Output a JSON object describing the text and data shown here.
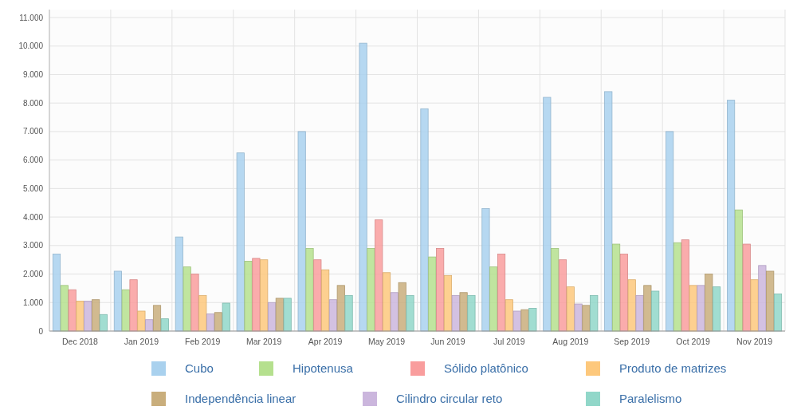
{
  "chart_data": {
    "type": "bar",
    "categories": [
      "Dec 2018",
      "Jan 2019",
      "Feb 2019",
      "Mar 2019",
      "Apr 2019",
      "May 2019",
      "Jun 2019",
      "Jul 2019",
      "Aug 2019",
      "Sep 2019",
      "Oct 2019",
      "Nov 2019"
    ],
    "series": [
      {
        "name": "Cubo",
        "color": "#a9d1ee",
        "values": [
          2700,
          2100,
          3300,
          6250,
          7000,
          10100,
          7800,
          4300,
          8200,
          8400,
          7000,
          8100
        ]
      },
      {
        "name": "Hipotenusa",
        "color": "#b5e08e",
        "values": [
          1600,
          1450,
          2250,
          2450,
          2900,
          2900,
          2600,
          2250,
          2900,
          3050,
          3100,
          4250
        ]
      },
      {
        "name": "Sólido platônico",
        "color": "#f99d9d",
        "values": [
          1450,
          1800,
          2000,
          2550,
          2500,
          3900,
          2900,
          2700,
          2500,
          2700,
          3200,
          3050
        ]
      },
      {
        "name": "Produto de matrizes",
        "color": "#fdc87c",
        "values": [
          1050,
          700,
          1250,
          2500,
          2150,
          2050,
          1950,
          1100,
          1550,
          1800,
          1600,
          1800
        ]
      },
      {
        "name": "Cilindro circular reto",
        "color": "#cbb6dd",
        "values": [
          1050,
          400,
          600,
          1000,
          1100,
          1350,
          1250,
          700,
          950,
          1250,
          1600,
          2300
        ]
      },
      {
        "name": "Independência linear",
        "color": "#c9ae7c",
        "values": [
          1100,
          900,
          650,
          1150,
          1600,
          1700,
          1350,
          750,
          900,
          1600,
          2000,
          2100
        ]
      },
      {
        "name": "Paralelismo",
        "color": "#91d7c9",
        "values": [
          580,
          430,
          980,
          1150,
          1250,
          1250,
          1250,
          800,
          1250,
          1400,
          1550,
          1300
        ]
      }
    ],
    "ylim": [
      0,
      11000
    ],
    "yticks": [
      0,
      {
        "value": 1000,
        "label": "1.000"
      },
      {
        "value": 2000,
        "label": "2.000"
      },
      {
        "value": 3000,
        "label": "3.000"
      },
      {
        "value": 4000,
        "label": "4.000"
      },
      {
        "value": 5000,
        "label": "5.000"
      },
      {
        "value": 6000,
        "label": "6.000"
      },
      {
        "value": 7000,
        "label": "7.000"
      },
      {
        "value": 8000,
        "label": "8.000"
      },
      {
        "value": 9000,
        "label": "9.000"
      },
      {
        "value": 10000,
        "label": "10.000"
      },
      {
        "value": 11000,
        "label": "11.000"
      }
    ],
    "grid": true,
    "legend": "bottom"
  }
}
